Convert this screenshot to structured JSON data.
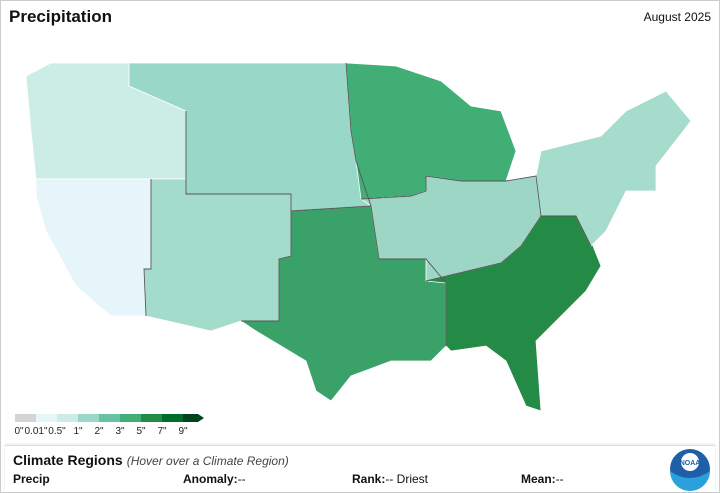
{
  "title": "Precipitation",
  "date": "August 2025",
  "legend": {
    "colors": [
      "#d4d4d4",
      "#e5f5f9",
      "#ccece6",
      "#99d8c9",
      "#66c2a4",
      "#41ae76",
      "#238b45",
      "#006d2c",
      "#00441b"
    ],
    "labels": [
      "0\"",
      "0.01\"",
      "0.5\"",
      "1\"",
      "2\"",
      "3\"",
      "5\"",
      "7\"",
      "9\""
    ]
  },
  "panel": {
    "title": "Climate Regions",
    "hint": "(Hover over a Climate Region)",
    "precip_label": "Precip",
    "anomaly_label": "Anomaly:",
    "anomaly_value": "--",
    "rank_label": "Rank:",
    "rank_value": "-- Driest",
    "mean_label": "Mean:",
    "mean_value": "--"
  }
}
